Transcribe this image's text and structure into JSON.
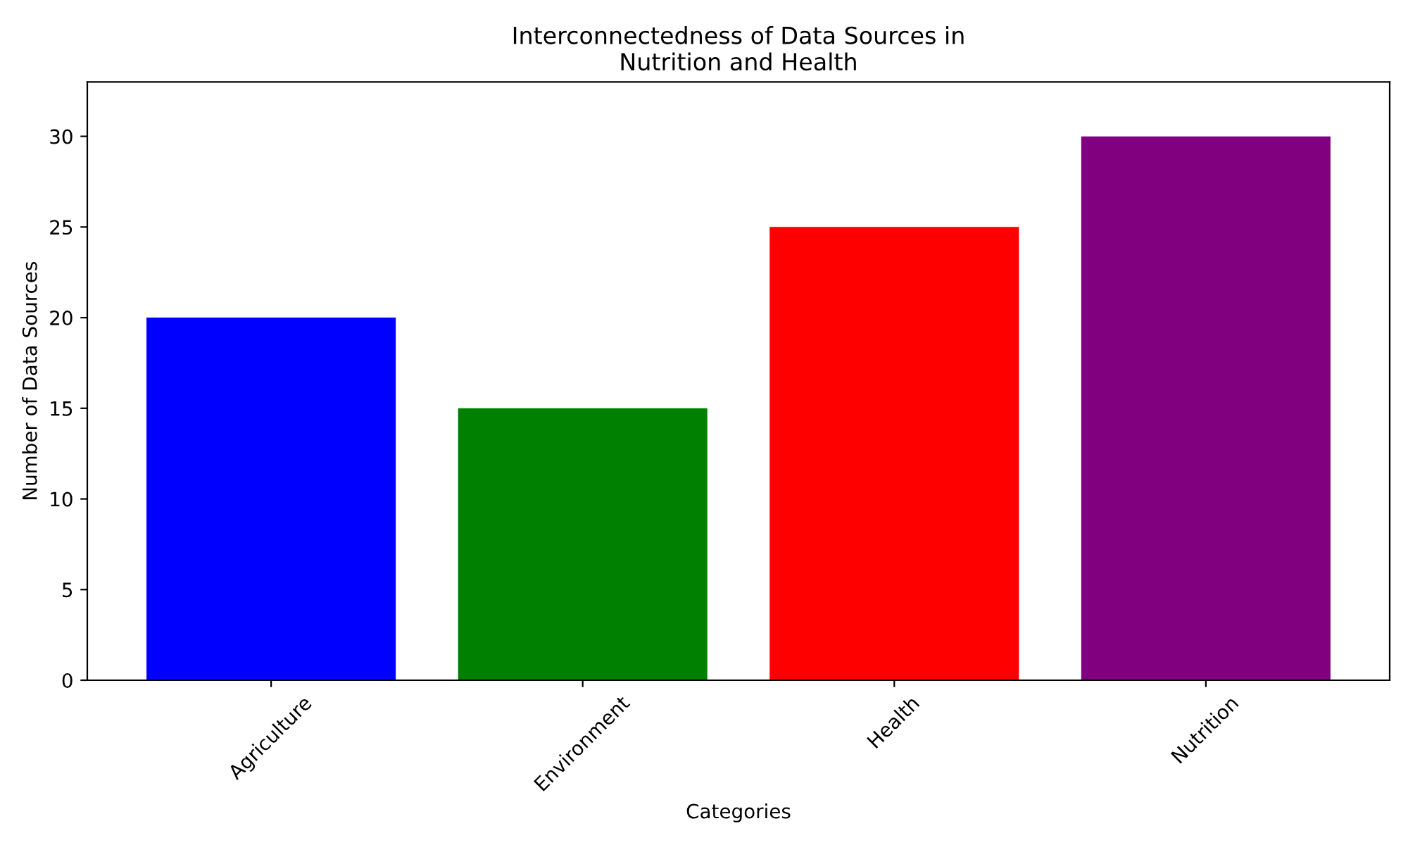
{
  "chart_data": {
    "type": "bar",
    "title": "Interconnectedness of Data Sources in\nNutrition and Health",
    "xlabel": "Categories",
    "ylabel": "Number of Data Sources",
    "categories": [
      "Agriculture",
      "Environment",
      "Health",
      "Nutrition"
    ],
    "values": [
      20,
      15,
      25,
      30
    ],
    "colors": [
      "#0000ff",
      "#008000",
      "#ff0000",
      "#800080"
    ],
    "ylim": [
      0,
      33
    ],
    "yticks": [
      0,
      5,
      10,
      15,
      20,
      25,
      30
    ],
    "grid": false,
    "legend": false
  }
}
